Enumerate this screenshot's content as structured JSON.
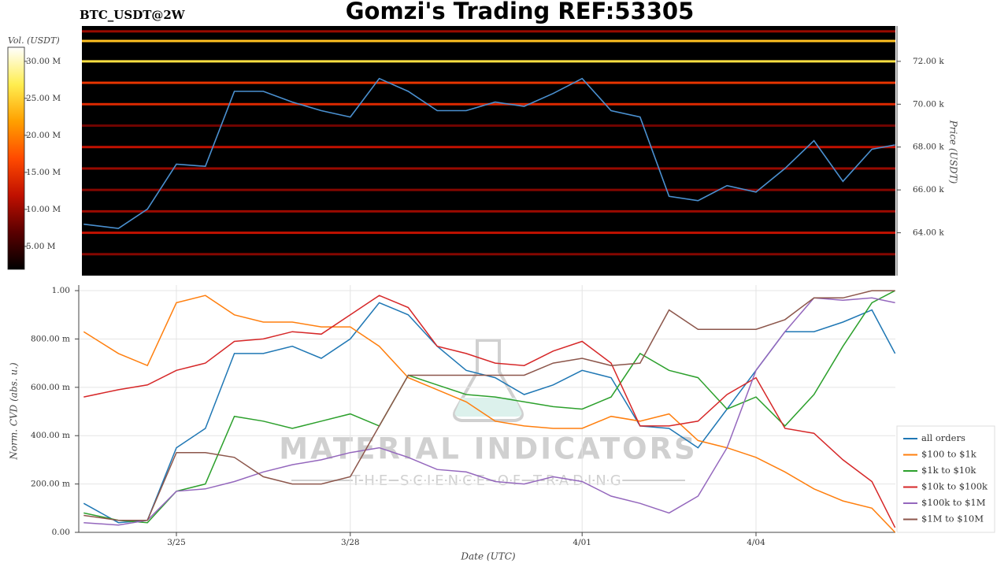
{
  "header": {
    "title": "Gomzi's Trading REF:53305",
    "subtitle": "BTC_USDT@2W",
    "watermark": [
      "MATERIAL INDICATORS",
      "THE SCIENCE OF TRADING"
    ]
  },
  "chart_data": [
    {
      "type": "heatmap",
      "colorbar_label": "Vol. (USDT)",
      "ylabel": "Price (USDT)",
      "colormap": [
        "#000000",
        "#5a0000",
        "#c01000",
        "#ff4a00",
        "#ffa000",
        "#ffee50",
        "#ffffff"
      ],
      "clim": [
        1900000,
        31900000
      ],
      "cticks": [
        {
          "value": 5000000,
          "label": "5.00 M"
        },
        {
          "value": 10000000,
          "label": "10.00 M"
        },
        {
          "value": 15000000,
          "label": "15.00 M"
        },
        {
          "value": 20000000,
          "label": "20.00 M"
        },
        {
          "value": 25000000,
          "label": "25.00 M"
        },
        {
          "value": 30000000,
          "label": "30.00 M"
        }
      ],
      "levels": [
        73400,
        72950,
        72000,
        71000,
        70000,
        69000,
        68000,
        67000,
        66000,
        65000,
        64000,
        63000
      ],
      "volumes": [
        10000000,
        24000000,
        26000000,
        15000000,
        14000000,
        8000000,
        12000000,
        10000000,
        9000000,
        10000000,
        12000000,
        9000000
      ],
      "xlim": [
        -1.685,
        12.405
      ],
      "x": [
        -1.6,
        -1.0,
        -0.5,
        0,
        0.5,
        1.0,
        1.5,
        2.0,
        2.5,
        3.0,
        3.5,
        4.0,
        4.5,
        5.0,
        5.5,
        6.0,
        6.5,
        7.0,
        7.5,
        8.0,
        8.5,
        9.0,
        9.5,
        10.0,
        10.5,
        11.0,
        11.5,
        12.0,
        12.4
      ],
      "series": [
        {
          "color": "#4a90d0",
          "values": [
            64400,
            64200,
            65100,
            67200,
            67100,
            70600,
            70600,
            70100,
            69700,
            69400,
            71200,
            70600,
            69700,
            69700,
            70100,
            69900,
            70500,
            71200,
            69700,
            69400,
            65700,
            65500,
            66200,
            65900,
            67000,
            68300,
            66400,
            67900,
            68100
          ]
        }
      ],
      "ylim": [
        62000,
        73650
      ],
      "yticks": [
        {
          "value": 64000,
          "label": "64.00 k"
        },
        {
          "value": 66000,
          "label": "66.00 k"
        },
        {
          "value": 68000,
          "label": "68.00 k"
        },
        {
          "value": 70000,
          "label": "70.00 k"
        },
        {
          "value": 72000,
          "label": "72.00 k"
        }
      ]
    },
    {
      "type": "line",
      "ylabel": "Norm. CVD (abs. u.)",
      "xlabel": "Date (UTC)",
      "xlim": [
        -1.685,
        12.405
      ],
      "xticks": [
        {
          "value": 0,
          "label": "3/25"
        },
        {
          "value": 3,
          "label": "3/28"
        },
        {
          "value": 7,
          "label": "4/01"
        },
        {
          "value": 10,
          "label": "4/04"
        }
      ],
      "ylim": [
        0,
        1.023
      ],
      "yticks": [
        {
          "value": 0,
          "label": "0.00"
        },
        {
          "value": 0.2,
          "label": "200.00 m"
        },
        {
          "value": 0.4,
          "label": "400.00 m"
        },
        {
          "value": 0.6,
          "label": "600.00 m"
        },
        {
          "value": 0.8,
          "label": "800.00 m"
        },
        {
          "value": 1,
          "label": "1.00"
        }
      ],
      "grid": true,
      "legend": "lower-right",
      "x": [
        -1.6,
        -1.0,
        -0.5,
        0,
        0.5,
        1.0,
        1.5,
        2.0,
        2.5,
        3.0,
        3.5,
        4.0,
        4.5,
        5.0,
        5.5,
        6.0,
        6.5,
        7.0,
        7.5,
        8.0,
        8.5,
        9.0,
        9.5,
        10.0,
        10.5,
        11.0,
        11.5,
        12.0,
        12.4
      ],
      "series": [
        {
          "name": "all orders",
          "color": "#1f77b4",
          "values": [
            0.12,
            0.04,
            0.05,
            0.35,
            0.43,
            0.74,
            0.74,
            0.77,
            0.72,
            0.8,
            0.95,
            0.9,
            0.77,
            0.67,
            0.64,
            0.57,
            0.61,
            0.67,
            0.64,
            0.44,
            0.43,
            0.35,
            0.51,
            0.67,
            0.83,
            0.83,
            0.87,
            0.92,
            0.74
          ]
        },
        {
          "name": "$100 to $1k",
          "color": "#ff7f0e",
          "values": [
            0.83,
            0.74,
            0.69,
            0.95,
            0.98,
            0.9,
            0.87,
            0.87,
            0.85,
            0.85,
            0.77,
            0.64,
            0.59,
            0.54,
            0.46,
            0.44,
            0.43,
            0.43,
            0.48,
            0.46,
            0.49,
            0.38,
            0.35,
            0.31,
            0.25,
            0.18,
            0.13,
            0.1,
            0.0
          ]
        },
        {
          "name": "$1k to $10k",
          "color": "#2ca02c",
          "values": [
            0.08,
            0.05,
            0.04,
            0.17,
            0.2,
            0.48,
            0.46,
            0.43,
            0.46,
            0.49,
            0.44,
            0.65,
            0.61,
            0.57,
            0.56,
            0.54,
            0.52,
            0.51,
            0.56,
            0.74,
            0.67,
            0.64,
            0.51,
            0.56,
            0.44,
            0.57,
            0.77,
            0.95,
            1.0
          ]
        },
        {
          "name": "$10k to $100k",
          "color": "#d62728",
          "values": [
            0.56,
            0.59,
            0.61,
            0.67,
            0.7,
            0.79,
            0.8,
            0.83,
            0.82,
            0.9,
            0.98,
            0.93,
            0.77,
            0.74,
            0.7,
            0.69,
            0.75,
            0.79,
            0.7,
            0.44,
            0.44,
            0.46,
            0.57,
            0.64,
            0.43,
            0.41,
            0.3,
            0.21,
            0.02
          ]
        },
        {
          "name": "$100k to $1M",
          "color": "#9467bd",
          "values": [
            0.04,
            0.03,
            0.05,
            0.17,
            0.18,
            0.21,
            0.25,
            0.28,
            0.3,
            0.33,
            0.35,
            0.31,
            0.26,
            0.25,
            0.21,
            0.2,
            0.23,
            0.21,
            0.15,
            0.12,
            0.08,
            0.15,
            0.35,
            0.67,
            0.83,
            0.97,
            0.96,
            0.97,
            0.95
          ]
        },
        {
          "name": "$1M to $10M",
          "color": "#8c564b",
          "values": [
            0.07,
            0.05,
            0.05,
            0.33,
            0.33,
            0.31,
            0.23,
            0.2,
            0.2,
            0.23,
            0.44,
            0.65,
            0.65,
            0.65,
            0.65,
            0.65,
            0.7,
            0.72,
            0.69,
            0.7,
            0.92,
            0.84,
            0.84,
            0.84,
            0.88,
            0.97,
            0.97,
            1.0,
            1.0
          ]
        }
      ]
    }
  ]
}
